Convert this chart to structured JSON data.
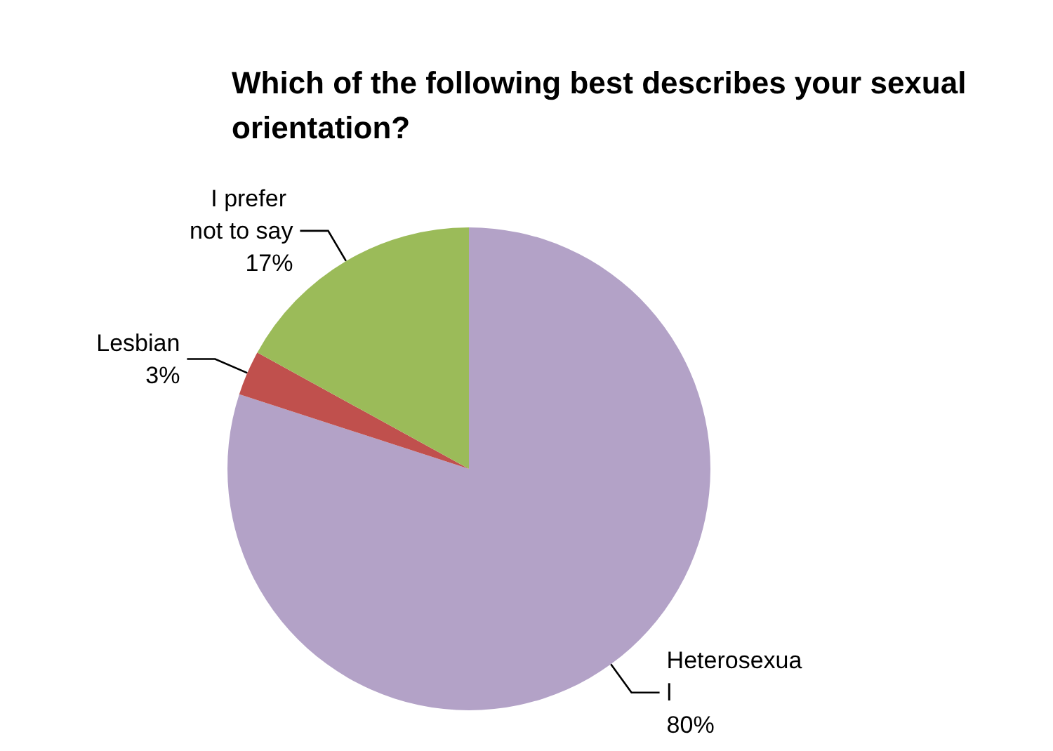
{
  "chart_data": {
    "type": "pie",
    "title": "Which of the following best describes your sexual orientation?",
    "categories": [
      "Heterosexual",
      "Lesbian",
      "I prefer not to say"
    ],
    "values": [
      80,
      3,
      17
    ],
    "colors": [
      "#b3a2c7",
      "#c0504d",
      "#9bbb59"
    ],
    "value_labels": [
      "80%",
      "3%",
      "17%"
    ],
    "legend": false
  }
}
